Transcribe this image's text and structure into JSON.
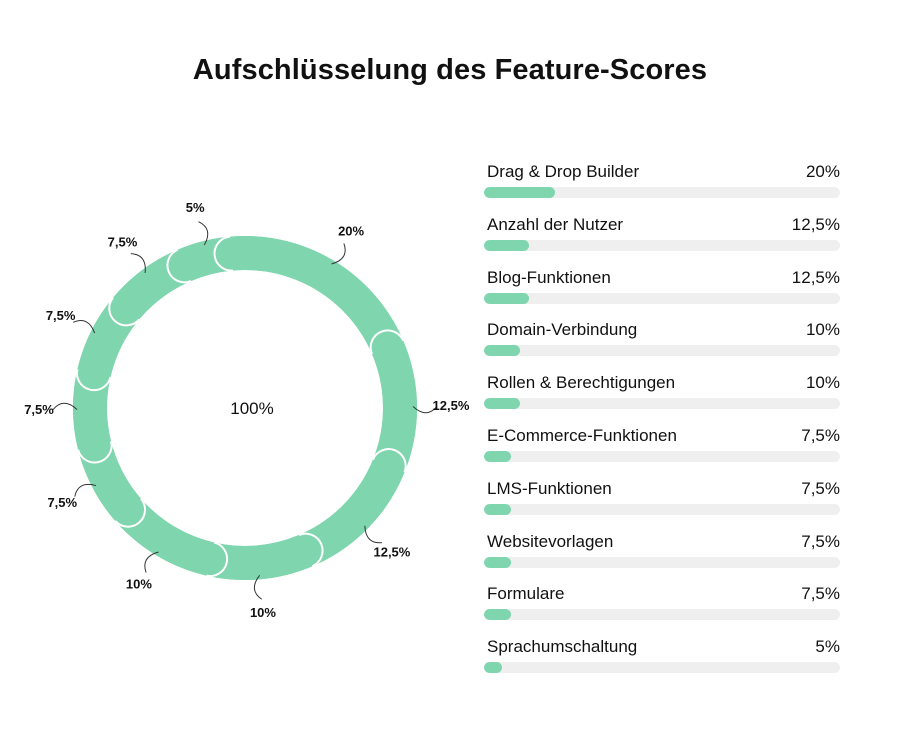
{
  "title": "Aufschlüsselung des Feature-Scores",
  "colors": {
    "accent": "#7fd6ae",
    "track": "#efefef",
    "separator": "#ffffff"
  },
  "chart_data": [
    {
      "type": "pie",
      "variant": "donut",
      "center_label": "100%",
      "slices": [
        {
          "label": "20%",
          "value": 20
        },
        {
          "label": "12,5%",
          "value": 12.5
        },
        {
          "label": "12,5%",
          "value": 12.5
        },
        {
          "label": "10%",
          "value": 10
        },
        {
          "label": "10%",
          "value": 10
        },
        {
          "label": "7,5%",
          "value": 7.5
        },
        {
          "label": "7,5%",
          "value": 7.5
        },
        {
          "label": "7,5%",
          "value": 7.5
        },
        {
          "label": "7,5%",
          "value": 7.5
        },
        {
          "label": "5%",
          "value": 5
        }
      ]
    },
    {
      "type": "bar",
      "orientation": "horizontal",
      "max": 100,
      "categories": [
        "Drag & Drop Builder",
        "Anzahl der Nutzer",
        "Blog-Funktionen",
        "Domain-Verbindung",
        "Rollen & Berechtigungen",
        "E-Commerce-Funktionen",
        "LMS-Funktionen",
        "Websitevorlagen",
        "Formulare",
        "Sprachumschaltung"
      ],
      "values": [
        20,
        12.5,
        12.5,
        10,
        10,
        7.5,
        7.5,
        7.5,
        7.5,
        5
      ],
      "value_labels": [
        "20%",
        "12,5%",
        "12,5%",
        "10%",
        "10%",
        "7,5%",
        "7,5%",
        "7,5%",
        "7,5%",
        "5%"
      ]
    }
  ]
}
